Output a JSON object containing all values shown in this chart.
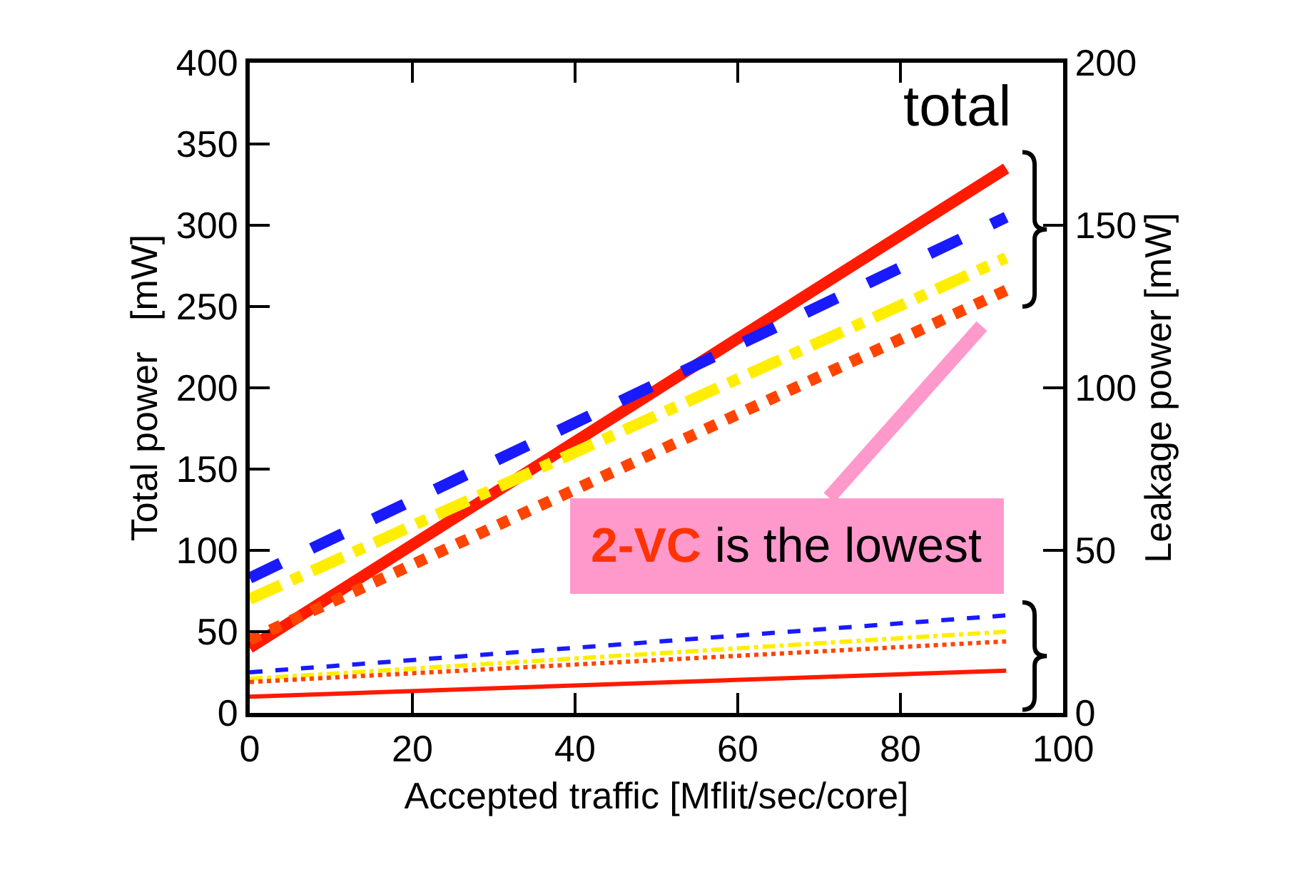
{
  "chart_data": {
    "type": "line",
    "xlabel": "Accepted traffic [Mflit/sec/core]",
    "ylabel": "Total power   [mW]",
    "y2label": "Leakage power [mW]",
    "x": [
      0,
      93
    ],
    "series": [
      {
        "color": "#ff1a00",
        "values": [
          40,
          335
        ],
        "line_style": "solid"
      },
      {
        "color": "#1a1aff",
        "values": [
          83,
          305
        ],
        "line_style": "dashed"
      },
      {
        "color": "#ffee00",
        "values": [
          70,
          280
        ],
        "line_style": "dashdot"
      },
      {
        "color": "#ff4400",
        "values": [
          45,
          260
        ],
        "line_style": "dotted"
      },
      {
        "color": "#ff1a00",
        "values": [
          5,
          13
        ],
        "line_style": "solid",
        "axis": "y2"
      },
      {
        "color": "#1a1aff",
        "values": [
          12.5,
          30
        ],
        "line_style": "dashed",
        "axis": "y2"
      },
      {
        "color": "#ffee00",
        "values": [
          10.5,
          25
        ],
        "line_style": "dashdot",
        "axis": "y2"
      },
      {
        "color": "#ff4400",
        "values": [
          9.5,
          22
        ],
        "line_style": "dotted",
        "axis": "y2"
      }
    ],
    "xlim": [
      0,
      100
    ],
    "xticks": [
      0,
      20,
      40,
      60,
      80,
      100
    ],
    "ylim": [
      0,
      400
    ],
    "yticks": [
      0,
      50,
      100,
      150,
      200,
      250,
      300,
      350,
      400
    ],
    "y2lim": [
      0,
      200
    ],
    "y2ticks": [
      0,
      50,
      100,
      150,
      200
    ],
    "annotations": [
      "total",
      "2-VC is the lowest"
    ]
  }
}
